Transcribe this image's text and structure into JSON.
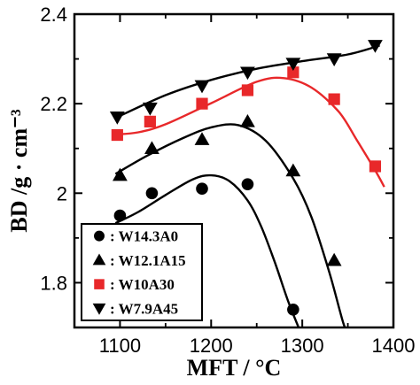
{
  "chart_data": {
    "type": "scatter",
    "xlabel": "MFT / °C",
    "ylabel": "BD /g · cm⁻³",
    "xlim": [
      1050,
      1400
    ],
    "ylim": [
      1.7,
      2.4
    ],
    "xticks": [
      1100,
      1200,
      1300,
      1400
    ],
    "yticks": [
      1.8,
      2.0,
      2.2,
      2.4
    ],
    "xtick_labels": [
      "1100",
      "1200",
      "1300",
      "1400"
    ],
    "ytick_labels": [
      "1.8",
      "2",
      "2.2",
      "2.4"
    ],
    "grid": false,
    "legend_position": "bottom-left",
    "series": [
      {
        "name": ": W14.3A0",
        "marker": "circle",
        "color": "#000000",
        "x": [
          1100,
          1135,
          1190,
          1240,
          1290
        ],
        "y": [
          1.95,
          2.0,
          2.01,
          2.02,
          1.74
        ],
        "fit_x": [
          1095,
          1120,
          1150,
          1180,
          1200,
          1220,
          1240,
          1255,
          1270,
          1285,
          1300
        ],
        "fit_y": [
          1.933,
          1.958,
          1.996,
          2.031,
          2.04,
          2.027,
          1.984,
          1.925,
          1.845,
          1.756,
          1.68
        ]
      },
      {
        "name": ": W12.1A15",
        "marker": "triangle-up",
        "color": "#000000",
        "x": [
          1100,
          1135,
          1190,
          1240,
          1290,
          1335
        ],
        "y": [
          2.04,
          2.1,
          2.12,
          2.16,
          2.05,
          1.85
        ],
        "fit_x": [
          1095,
          1130,
          1170,
          1200,
          1230,
          1260,
          1290,
          1310,
          1330,
          1345,
          1352
        ],
        "fit_y": [
          2.043,
          2.084,
          2.124,
          2.147,
          2.152,
          2.117,
          2.033,
          1.947,
          1.821,
          1.71,
          1.68
        ]
      },
      {
        "name": ": W10A30",
        "marker": "square",
        "color": "#e8282a",
        "x": [
          1097,
          1133,
          1190,
          1240,
          1290,
          1335,
          1380
        ],
        "y": [
          2.13,
          2.16,
          2.2,
          2.23,
          2.27,
          2.21,
          2.06
        ],
        "fit_x": [
          1095,
          1120,
          1150,
          1200,
          1250,
          1280,
          1310,
          1340,
          1360,
          1380,
          1390
        ],
        "fit_y": [
          2.131,
          2.136,
          2.154,
          2.201,
          2.249,
          2.257,
          2.236,
          2.182,
          2.118,
          2.051,
          2.014
        ]
      },
      {
        "name": ": W7.9A45",
        "marker": "triangle-down",
        "color": "#000000",
        "x": [
          1097,
          1133,
          1190,
          1240,
          1290,
          1335,
          1380
        ],
        "y": [
          2.17,
          2.19,
          2.24,
          2.27,
          2.29,
          2.3,
          2.33
        ],
        "fit_x": [
          1095,
          1150,
          1200,
          1250,
          1300,
          1350,
          1385
        ],
        "fit_y": [
          2.168,
          2.219,
          2.253,
          2.278,
          2.295,
          2.31,
          2.33
        ]
      }
    ],
    "legend_box": {
      "x_frac": [
        0.1,
        0.495
      ],
      "y_frac": [
        0.05,
        0.4
      ]
    }
  }
}
